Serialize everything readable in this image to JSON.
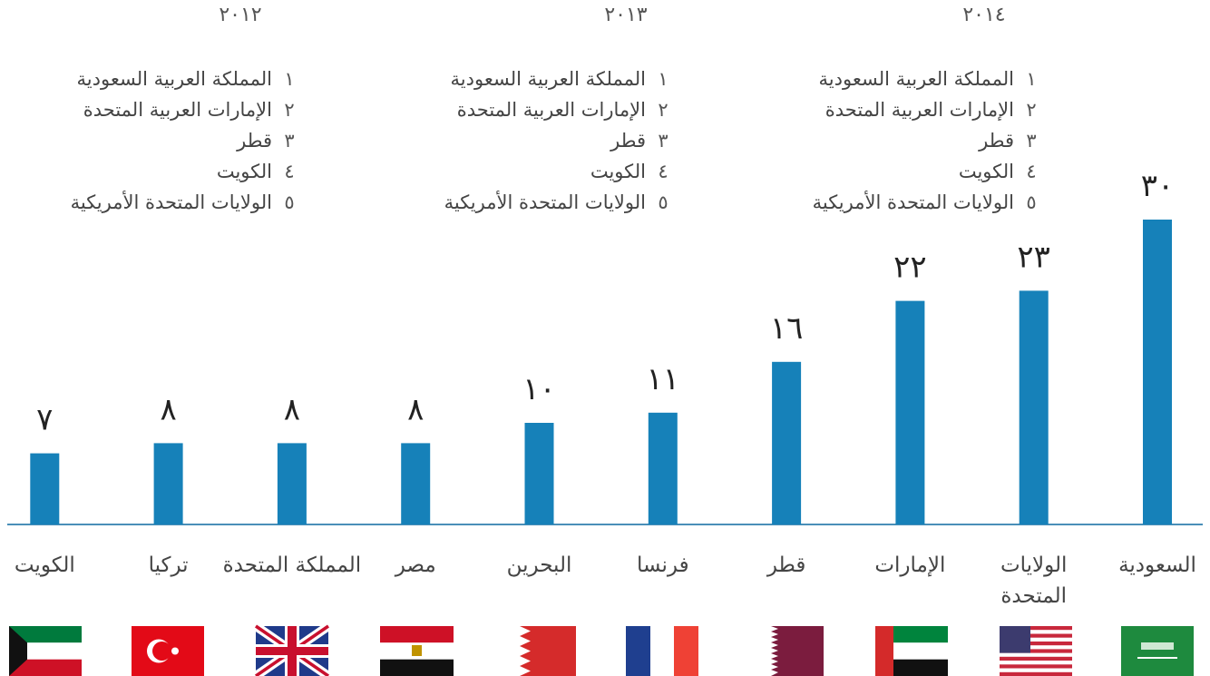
{
  "chart_data": {
    "type": "bar",
    "categories": [
      "السعودية",
      "الولايات المتحدة",
      "الإمارات",
      "قطر",
      "فرنسا",
      "البحرين",
      "مصر",
      "المملكة المتحدة",
      "تركيا",
      "الكويت"
    ],
    "values": [
      30,
      23,
      22,
      16,
      11,
      10,
      8,
      8,
      8,
      7
    ],
    "value_labels": [
      "٣٠",
      "٢٣",
      "٢٢",
      "١٦",
      "١١",
      "١٠",
      "٨",
      "٨",
      "٨",
      "٧"
    ],
    "color": "#1681b9"
  },
  "rankings": [
    {
      "year": "٢٠١٤",
      "items": [
        {
          "rank": "١",
          "name": "المملكة العربية السعودية"
        },
        {
          "rank": "٢",
          "name": "الإمارات العربية المتحدة"
        },
        {
          "rank": "٣",
          "name": "قطر"
        },
        {
          "rank": "٤",
          "name": "الكويت"
        },
        {
          "rank": "٥",
          "name": "الولايات المتحدة الأمريكية"
        }
      ]
    },
    {
      "year": "٢٠١٣",
      "items": [
        {
          "rank": "١",
          "name": "المملكة العربية السعودية"
        },
        {
          "rank": "٢",
          "name": "الإمارات العربية المتحدة"
        },
        {
          "rank": "٣",
          "name": "قطر"
        },
        {
          "rank": "٤",
          "name": "الكويت"
        },
        {
          "rank": "٥",
          "name": "الولايات المتحدة الأمريكية"
        }
      ]
    },
    {
      "year": "٢٠١٢",
      "items": [
        {
          "rank": "١",
          "name": "المملكة العربية السعودية"
        },
        {
          "rank": "٢",
          "name": "الإمارات العربية المتحدة"
        },
        {
          "rank": "٣",
          "name": "قطر"
        },
        {
          "rank": "٤",
          "name": "الكويت"
        },
        {
          "rank": "٥",
          "name": "الولايات المتحدة الأمريكية"
        }
      ]
    }
  ]
}
